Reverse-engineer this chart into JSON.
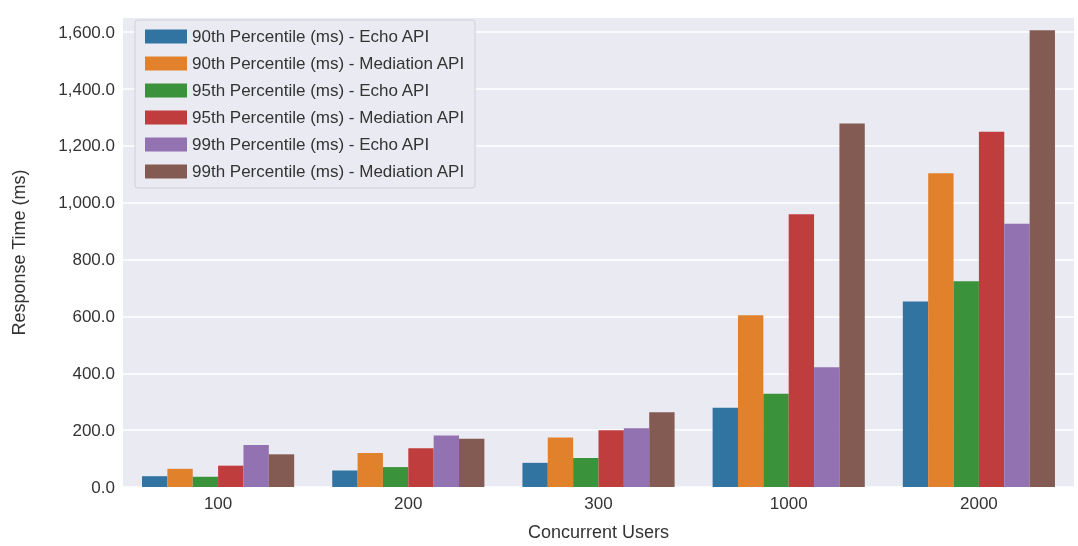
{
  "chart_data": {
    "type": "bar",
    "xlabel": "Concurrent Users",
    "ylabel": "Response Time (ms)",
    "categories": [
      "100",
      "200",
      "300",
      "1000",
      "2000"
    ],
    "series": [
      {
        "name": "90th Percentile (ms) - Echo API",
        "color": "#3274a1",
        "values": [
          38,
          58,
          85,
          279,
          653
        ]
      },
      {
        "name": "90th Percentile (ms) - Mediation API",
        "color": "#e1812c",
        "values": [
          64,
          120,
          174,
          604,
          1104
        ]
      },
      {
        "name": "95th Percentile (ms) - Echo API",
        "color": "#3a923a",
        "values": [
          36,
          70,
          102,
          328,
          724
        ]
      },
      {
        "name": "95th Percentile (ms) - Mediation API",
        "color": "#c03d3e",
        "values": [
          75,
          136,
          200,
          960,
          1250
        ]
      },
      {
        "name": "99th Percentile (ms) - Echo API",
        "color": "#9372b2",
        "values": [
          148,
          181,
          207,
          421,
          926
        ]
      },
      {
        "name": "99th Percentile (ms) - Mediation API",
        "color": "#845b53",
        "values": [
          115,
          170,
          263,
          1279,
          1607
        ]
      }
    ],
    "ylim": [
      0,
      1650
    ],
    "yticks": [
      {
        "value": 0,
        "label": "0.0"
      },
      {
        "value": 200,
        "label": "200.0"
      },
      {
        "value": 400,
        "label": "400.0"
      },
      {
        "value": 600,
        "label": "600.0"
      },
      {
        "value": 800,
        "label": "800.0"
      },
      {
        "value": 1000,
        "label": "1,000.0"
      },
      {
        "value": 1200,
        "label": "1,200.0"
      },
      {
        "value": 1400,
        "label": "1,400.0"
      },
      {
        "value": 1600,
        "label": "1,600.0"
      }
    ],
    "grid": "y",
    "legend": "top left"
  }
}
